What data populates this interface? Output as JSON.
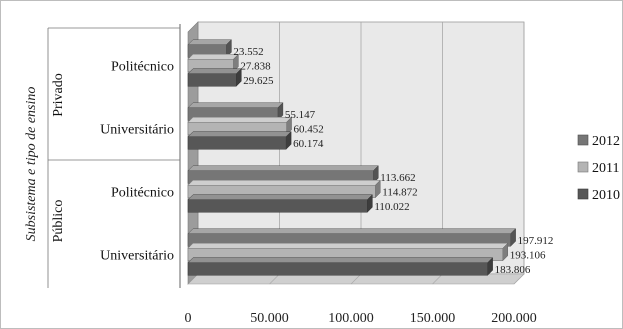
{
  "chart_data": {
    "type": "bar",
    "orientation": "horizontal",
    "three_d": true,
    "ylabel": "Subsistema e tipo de ensino",
    "xlim": [
      0,
      200000
    ],
    "x_ticks": [
      "0",
      "50.000",
      "100.000",
      "150.000",
      "200.000"
    ],
    "groups": [
      {
        "label": "Privado",
        "categories": [
          "Politécnico",
          "Universitário"
        ]
      },
      {
        "label": "Público",
        "categories": [
          "Politécnico",
          "Universitário"
        ]
      }
    ],
    "categories": [
      "Politécnico",
      "Universitário",
      "Politécnico",
      "Universitário"
    ],
    "series": [
      {
        "name": "2012",
        "color": "#767676",
        "values": [
          23552,
          55147,
          113662,
          197912
        ],
        "labels": [
          "23.552",
          "55.147",
          "113.662",
          "197.912"
        ]
      },
      {
        "name": "2011",
        "color": "#b4b4b4",
        "values": [
          27838,
          60452,
          114872,
          193106
        ],
        "labels": [
          "27.838",
          "60.452",
          "114.872",
          "193.106"
        ]
      },
      {
        "name": "2010",
        "color": "#575757",
        "values": [
          29625,
          60174,
          110022,
          183806
        ],
        "labels": [
          "29.625",
          "60.174",
          "110.022",
          "183.806"
        ]
      }
    ],
    "legend_position": "right",
    "grid": true
  }
}
